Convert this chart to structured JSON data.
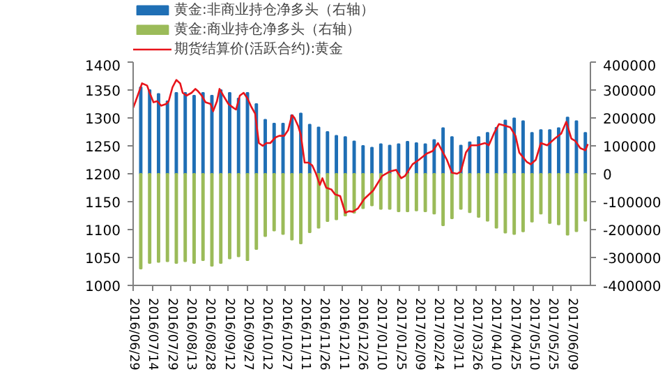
{
  "chart_data": {
    "type": "bar",
    "legend": "top",
    "grid": false,
    "xlim": [
      "2016-06-29",
      "2017-06-24"
    ],
    "xticks": [
      {
        "value": "2016-06-29",
        "label": "2016/06/29"
      },
      {
        "value": "2016-07-14",
        "label": "2016/07/14"
      },
      {
        "value": "2016-07-29",
        "label": "2016/07/29"
      },
      {
        "value": "2016-08-13",
        "label": "2016/08/13"
      },
      {
        "value": "2016-08-28",
        "label": "2016/08/28"
      },
      {
        "value": "2016-09-12",
        "label": "2016/09/12"
      },
      {
        "value": "2016-09-27",
        "label": "2016/09/27"
      },
      {
        "value": "2016-10-12",
        "label": "2016/10/12"
      },
      {
        "value": "2016-10-27",
        "label": "2016/10/27"
      },
      {
        "value": "2016-11-11",
        "label": "2016/11/11"
      },
      {
        "value": "2016-11-26",
        "label": "2016/11/26"
      },
      {
        "value": "2016-12-11",
        "label": "2016/12/11"
      },
      {
        "value": "2016-12-26",
        "label": "2016/12/26"
      },
      {
        "value": "2017-01-10",
        "label": "2017/01/10"
      },
      {
        "value": "2017-01-25",
        "label": "2017/01/25"
      },
      {
        "value": "2017-02-09",
        "label": "2017/02/09"
      },
      {
        "value": "2017-02-24",
        "label": "2017/02/24"
      },
      {
        "value": "2017-03-11",
        "label": "2017/03/11"
      },
      {
        "value": "2017-03-26",
        "label": "2017/03/26"
      },
      {
        "value": "2017-04-10",
        "label": "2017/04/10"
      },
      {
        "value": "2017-04-25",
        "label": "2017/04/25"
      },
      {
        "value": "2017-05-10",
        "label": "2017/05/10"
      },
      {
        "value": "2017-05-25",
        "label": "2017/05/25"
      },
      {
        "value": "2017-06-09",
        "label": "2017/06/09"
      }
    ],
    "ylim": [
      1000,
      1400
    ],
    "yticks": [
      1000,
      1050,
      1100,
      1150,
      1200,
      1250,
      1300,
      1350,
      1400
    ],
    "y2lim": [
      -400000,
      400000
    ],
    "y2ticks": [
      -400000,
      -300000,
      -200000,
      -100000,
      0,
      100000,
      200000,
      300000,
      400000
    ],
    "x": [
      "2016-07-05",
      "2016-07-12",
      "2016-07-19",
      "2016-07-26",
      "2016-08-02",
      "2016-08-09",
      "2016-08-16",
      "2016-08-23",
      "2016-08-30",
      "2016-09-06",
      "2016-09-13",
      "2016-09-20",
      "2016-09-27",
      "2016-10-04",
      "2016-10-11",
      "2016-10-18",
      "2016-10-25",
      "2016-11-01",
      "2016-11-08",
      "2016-11-15",
      "2016-11-22",
      "2016-11-29",
      "2016-12-06",
      "2016-12-13",
      "2016-12-20",
      "2016-12-27",
      "2017-01-03",
      "2017-01-10",
      "2017-01-17",
      "2017-01-24",
      "2017-01-31",
      "2017-02-07",
      "2017-02-14",
      "2017-02-21",
      "2017-02-28",
      "2017-03-07",
      "2017-03-14",
      "2017-03-21",
      "2017-03-28",
      "2017-04-04",
      "2017-04-11",
      "2017-04-18",
      "2017-04-25",
      "2017-05-02",
      "2017-05-09",
      "2017-05-16",
      "2017-05-23",
      "2017-05-30",
      "2017-06-06",
      "2017-06-13",
      "2017-06-20"
    ],
    "series": [
      {
        "name": "黄金:非商业持仓净多头（右轴）",
        "axis": "y2",
        "color": "#1f6fb5",
        "values": [
          310000,
          300000,
          286000,
          260000,
          290000,
          290000,
          280000,
          290000,
          280000,
          300000,
          290000,
          270000,
          290000,
          250000,
          194000,
          180000,
          180000,
          210000,
          216000,
          176000,
          166000,
          150000,
          136000,
          132000,
          116000,
          100000,
          94000,
          106000,
          101000,
          106000,
          115000,
          110000,
          106000,
          121000,
          164000,
          132000,
          101000,
          113000,
          132000,
          147000,
          165000,
          191000,
          199000,
          189000,
          147000,
          157000,
          157000,
          164000,
          202000,
          189000,
          147000
        ]
      },
      {
        "name": "黄金:商业持仓净多头（右轴）",
        "axis": "y2",
        "color": "#9bbb59",
        "values": [
          -340000,
          -320000,
          -316000,
          -314000,
          -320000,
          -314000,
          -320000,
          -310000,
          -330000,
          -320000,
          -304000,
          -296000,
          -310000,
          -270000,
          -224000,
          -204000,
          -216000,
          -236000,
          -250000,
          -210000,
          -194000,
          -170000,
          -164000,
          -150000,
          -140000,
          -124000,
          -114000,
          -126000,
          -126000,
          -135000,
          -135000,
          -132000,
          -135000,
          -143000,
          -185000,
          -160000,
          -126000,
          -138000,
          -155000,
          -169000,
          -194000,
          -211000,
          -216000,
          -207000,
          -172000,
          -143000,
          -177000,
          -182000,
          -219000,
          -206000,
          -169000
        ]
      },
      {
        "name": "期货结算价(活跃合约):黄金",
        "type": "line",
        "color": "#e8141b",
        "x": [
          "2016-06-29",
          "2016-07-01",
          "2016-07-06",
          "2016-07-10",
          "2016-07-12",
          "2016-07-15",
          "2016-07-18",
          "2016-07-21",
          "2016-07-25",
          "2016-07-27",
          "2016-07-30",
          "2016-08-02",
          "2016-08-05",
          "2016-08-07",
          "2016-08-10",
          "2016-08-14",
          "2016-08-17",
          "2016-08-19",
          "2016-08-22",
          "2016-08-25",
          "2016-08-29",
          "2016-08-31",
          "2016-09-03",
          "2016-09-05",
          "2016-09-08",
          "2016-09-12",
          "2016-09-16",
          "2016-09-18",
          "2016-09-21",
          "2016-09-24",
          "2016-09-27",
          "2016-09-30",
          "2016-10-03",
          "2016-10-06",
          "2016-10-09",
          "2016-10-12",
          "2016-10-15",
          "2016-10-19",
          "2016-10-22",
          "2016-10-26",
          "2016-10-29",
          "2016-11-01",
          "2016-11-03",
          "2016-11-06",
          "2016-11-08",
          "2016-11-11",
          "2016-11-14",
          "2016-11-17",
          "2016-11-20",
          "2016-11-23",
          "2016-11-25",
          "2016-11-28",
          "2016-12-02",
          "2016-12-05",
          "2016-12-09",
          "2016-12-13",
          "2016-12-16",
          "2016-12-19",
          "2016-12-23",
          "2016-12-28",
          "2017-01-04",
          "2017-01-11",
          "2017-01-17",
          "2017-01-22",
          "2017-01-26",
          "2017-01-29",
          "2017-02-04",
          "2017-02-09",
          "2017-02-15",
          "2017-02-20",
          "2017-02-24",
          "2017-02-27",
          "2017-03-03",
          "2017-03-07",
          "2017-03-11",
          "2017-03-14",
          "2017-03-18",
          "2017-03-22",
          "2017-03-27",
          "2017-04-02",
          "2017-04-05",
          "2017-04-09",
          "2017-04-13",
          "2017-04-18",
          "2017-04-22",
          "2017-04-26",
          "2017-04-29",
          "2017-05-05",
          "2017-05-08",
          "2017-05-12",
          "2017-05-16",
          "2017-05-21",
          "2017-05-27",
          "2017-06-01",
          "2017-06-05",
          "2017-06-09",
          "2017-06-12",
          "2017-06-16",
          "2017-06-20",
          "2017-06-22"
        ],
        "values": [
          1318,
          1330,
          1362,
          1358,
          1345,
          1328,
          1330,
          1322,
          1325,
          1330,
          1355,
          1368,
          1362,
          1345,
          1340,
          1345,
          1352,
          1348,
          1340,
          1328,
          1325,
          1312,
          1330,
          1352,
          1340,
          1325,
          1318,
          1315,
          1340,
          1345,
          1335,
          1320,
          1308,
          1255,
          1250,
          1255,
          1255,
          1265,
          1268,
          1268,
          1278,
          1305,
          1300,
          1285,
          1270,
          1220,
          1220,
          1215,
          1200,
          1180,
          1192,
          1175,
          1172,
          1163,
          1160,
          1130,
          1133,
          1132,
          1138,
          1155,
          1170,
          1196,
          1204,
          1207,
          1192,
          1196,
          1217,
          1225,
          1236,
          1241,
          1255,
          1242,
          1225,
          1202,
          1200,
          1204,
          1238,
          1251,
          1251,
          1255,
          1251,
          1272,
          1289,
          1286,
          1283,
          1268,
          1238,
          1221,
          1217,
          1225,
          1255,
          1251,
          1263,
          1272,
          1293,
          1263,
          1259,
          1246,
          1242,
          1253
        ]
      }
    ]
  }
}
